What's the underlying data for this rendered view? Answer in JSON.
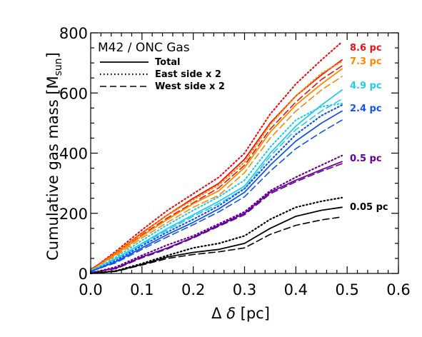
{
  "chart_data": {
    "type": "line",
    "title": "M42 / ONC Gas",
    "xlabel": "Δ δ [pc]",
    "ylabel_main": "Cumulative gas mass [M",
    "ylabel_sub": "sun",
    "ylabel_close": "]",
    "xlim": [
      0.0,
      0.6
    ],
    "ylim": [
      0,
      800
    ],
    "xticks": [
      "0.0",
      "0.1",
      "0.2",
      "0.3",
      "0.4",
      "0.5",
      "0.6"
    ],
    "yticks": [
      "0",
      "200",
      "400",
      "600",
      "800"
    ],
    "legend": [
      {
        "label": "Total",
        "style": "solid"
      },
      {
        "label": "East side x 2",
        "style": "dotted"
      },
      {
        "label": "West side x 2",
        "style": "dashed"
      }
    ],
    "x": [
      0.0,
      0.05,
      0.1,
      0.15,
      0.2,
      0.25,
      0.3,
      0.35,
      0.4,
      0.45,
      0.49
    ],
    "series": [
      {
        "name": "8.6 pc",
        "color": "#ee1111",
        "total": [
          12,
          70,
          135,
          195,
          250,
          300,
          380,
          500,
          590,
          660,
          710
        ],
        "east": [
          10,
          75,
          145,
          210,
          265,
          320,
          400,
          530,
          630,
          710,
          770
        ],
        "west": [
          14,
          65,
          128,
          185,
          235,
          285,
          360,
          480,
          570,
          645,
          690
        ]
      },
      {
        "name": "7.3 pc",
        "color": "#ff8800",
        "total": [
          10,
          65,
          125,
          180,
          232,
          275,
          352,
          470,
          560,
          630,
          680
        ],
        "east": [
          8,
          70,
          133,
          195,
          245,
          295,
          370,
          495,
          590,
          665,
          705
        ],
        "west": [
          12,
          60,
          118,
          170,
          220,
          260,
          335,
          450,
          540,
          610,
          655
        ]
      },
      {
        "name": "4.9 pc",
        "color": "#22ccee",
        "total": [
          8,
          50,
          100,
          150,
          195,
          240,
          290,
          400,
          490,
          560,
          610
        ],
        "east": [
          6,
          55,
          110,
          162,
          210,
          255,
          310,
          420,
          510,
          555,
          565
        ],
        "west": [
          10,
          48,
          96,
          145,
          190,
          232,
          282,
          390,
          478,
          540,
          580
        ]
      },
      {
        "name": "2.4 pc",
        "color": "#1155ee",
        "total": [
          6,
          40,
          85,
          130,
          170,
          215,
          270,
          360,
          440,
          500,
          540
        ],
        "east": [
          5,
          44,
          92,
          138,
          180,
          225,
          282,
          375,
          462,
          525,
          560
        ],
        "west": [
          7,
          36,
          80,
          122,
          162,
          205,
          255,
          340,
          415,
          470,
          510
        ]
      },
      {
        "name": "0.5 pc",
        "color": "#660099",
        "total": [
          2,
          18,
          55,
          85,
          120,
          160,
          200,
          270,
          310,
          345,
          372
        ],
        "east": [
          1,
          22,
          60,
          95,
          125,
          165,
          205,
          275,
          320,
          360,
          392
        ],
        "west": [
          3,
          16,
          52,
          82,
          118,
          157,
          195,
          265,
          305,
          340,
          365
        ]
      },
      {
        "name": "0.05 pc",
        "color": "#000000",
        "total": [
          0,
          8,
          30,
          55,
          70,
          80,
          100,
          150,
          190,
          210,
          220
        ],
        "east": [
          0,
          9,
          33,
          60,
          85,
          100,
          125,
          180,
          220,
          240,
          252
        ],
        "west": [
          0,
          7,
          28,
          50,
          63,
          72,
          85,
          130,
          160,
          178,
          188
        ]
      }
    ],
    "grid": false,
    "legend_position": "top-left"
  }
}
